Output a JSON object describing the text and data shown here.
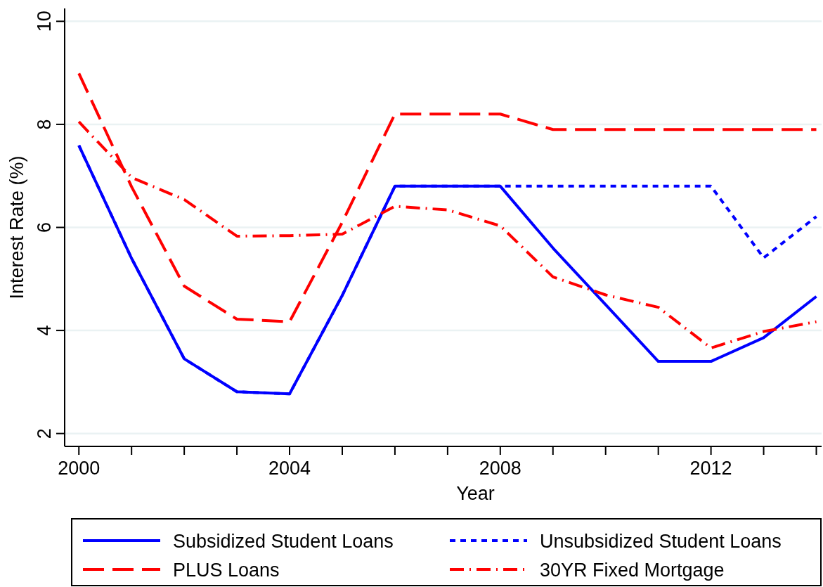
{
  "chart_data": {
    "type": "line",
    "xlabel": "Year",
    "ylabel": "Interest Rate (%)",
    "x": [
      2000,
      2001,
      2002,
      2003,
      2004,
      2005,
      2006,
      2007,
      2008,
      2009,
      2010,
      2011,
      2012,
      2013,
      2014
    ],
    "series": [
      {
        "name": "Subsidized Student Loans",
        "color": "#0000ff",
        "line_style": "solid",
        "values": [
          7.59,
          5.4,
          3.45,
          2.81,
          2.77,
          4.68,
          6.8,
          6.8,
          6.8,
          5.6,
          4.5,
          3.4,
          3.4,
          3.86,
          4.66
        ]
      },
      {
        "name": "Unsubsidized Student Loans",
        "color": "#0000ff",
        "line_style": "dotted",
        "values": [
          7.59,
          5.4,
          3.45,
          2.81,
          2.77,
          4.68,
          6.8,
          6.8,
          6.8,
          6.8,
          6.8,
          6.8,
          6.8,
          5.41,
          6.21
        ]
      },
      {
        "name": "PLUS Loans",
        "color": "#ff0000",
        "line_style": "dashed",
        "values": [
          8.99,
          6.79,
          4.86,
          4.22,
          4.17,
          6.1,
          8.2,
          8.2,
          8.2,
          7.9,
          7.9,
          7.9,
          7.9,
          7.9,
          7.9
        ]
      },
      {
        "name": "30YR Fixed Mortgage",
        "color": "#ff0000",
        "line_style": "dashdot",
        "values": [
          8.05,
          6.97,
          6.54,
          5.83,
          5.84,
          5.87,
          6.41,
          6.34,
          6.03,
          5.04,
          4.69,
          4.45,
          3.66,
          3.98,
          4.17
        ]
      }
    ],
    "xlim": [
      1999.73,
      2014.1
    ],
    "xticks": [
      2000,
      {
        "value": 2001,
        "label": null
      },
      {
        "value": 2002,
        "label": null
      },
      {
        "value": 2003,
        "label": null
      },
      2004,
      {
        "value": 2005,
        "label": null
      },
      {
        "value": 2006,
        "label": null
      },
      {
        "value": 2007,
        "label": null
      },
      2008,
      {
        "value": 2009,
        "label": null
      },
      {
        "value": 2010,
        "label": null
      },
      {
        "value": 2011,
        "label": null
      },
      2012,
      {
        "value": 2013,
        "label": null
      },
      {
        "value": 2014,
        "label": null
      }
    ],
    "ylim": [
      1.75,
      10.25
    ],
    "yticks": [
      2,
      4,
      6,
      8,
      10
    ],
    "grid": "y",
    "legend": "bottom",
    "marker": "none"
  }
}
